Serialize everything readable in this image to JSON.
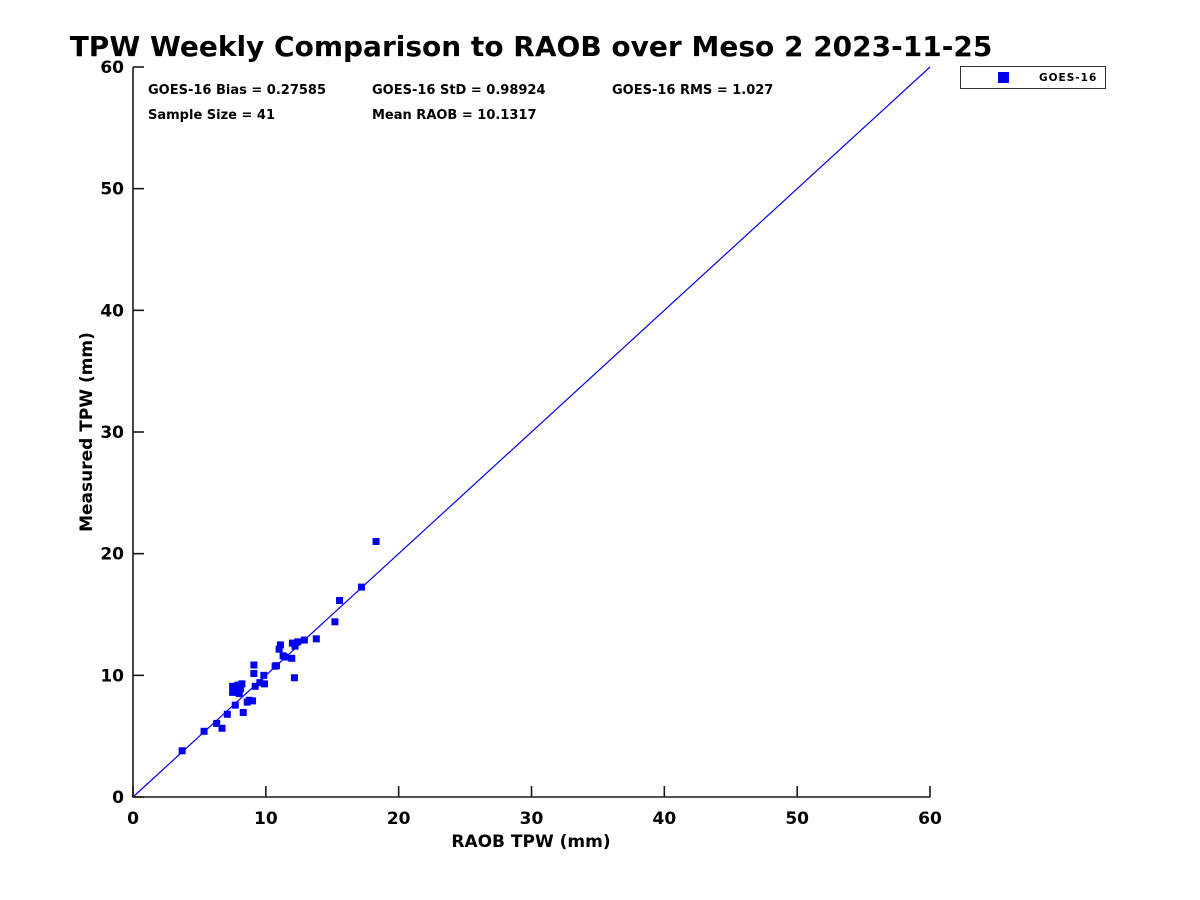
{
  "colors": {
    "series": "#0000EE",
    "axis": "#1a1a1a",
    "text": "#000000",
    "background": "#ffffff"
  },
  "legend": {
    "label": "GOES-16",
    "marker_shape": "square",
    "marker_color": "#0000EE"
  },
  "chart_data": {
    "type": "scatter",
    "title": "TPW Weekly Comparison to RAOB over Meso 2 2023-11-25",
    "xlabel": "RAOB TPW (mm)",
    "ylabel": "Measured TPW (mm)",
    "xlim": [
      0,
      60
    ],
    "ylim": [
      0,
      60
    ],
    "xticks": [
      0,
      10,
      20,
      30,
      40,
      50,
      60
    ],
    "yticks": [
      0,
      10,
      20,
      30,
      40,
      50,
      60
    ],
    "grid": false,
    "legend_position": "outside-top-right",
    "annotations": {
      "bias": "GOES-16 Bias = 0.27585",
      "std": "GOES-16 StD = 0.98924",
      "rms": "GOES-16 RMS = 1.027",
      "sample_size": "Sample Size = 41",
      "mean_raob": "Mean RAOB = 10.1317"
    },
    "reference_line": {
      "type": "identity",
      "x": [
        0,
        60
      ],
      "y": [
        0,
        60
      ],
      "color": "#0000EE"
    },
    "series": [
      {
        "name": "GOES-16",
        "marker": "filled-square",
        "color": "#0000EE",
        "marker_size_px": 7,
        "points": [
          [
            3.7,
            3.8
          ],
          [
            5.35,
            5.4
          ],
          [
            6.3,
            6.05
          ],
          [
            6.7,
            5.65
          ],
          [
            7.1,
            6.8
          ],
          [
            7.7,
            7.55
          ],
          [
            8.3,
            6.95
          ],
          [
            8.75,
            7.95
          ],
          [
            8.6,
            7.8
          ],
          [
            9.0,
            7.9
          ],
          [
            7.5,
            8.6
          ],
          [
            7.6,
            9.0
          ],
          [
            7.8,
            8.8
          ],
          [
            7.9,
            9.2
          ],
          [
            8.1,
            8.9
          ],
          [
            8.2,
            9.3
          ],
          [
            7.5,
            9.1
          ],
          [
            8.0,
            8.5
          ],
          [
            9.2,
            9.1
          ],
          [
            9.55,
            9.4
          ],
          [
            9.9,
            9.3
          ],
          [
            9.85,
            10.0
          ],
          [
            9.1,
            10.15
          ],
          [
            9.1,
            10.85
          ],
          [
            10.8,
            10.8
          ],
          [
            10.7,
            10.75
          ],
          [
            11.1,
            12.5
          ],
          [
            11.0,
            12.15
          ],
          [
            11.3,
            11.6
          ],
          [
            11.45,
            11.5
          ],
          [
            11.95,
            11.4
          ],
          [
            12.0,
            12.65
          ],
          [
            12.2,
            12.4
          ],
          [
            12.4,
            12.75
          ],
          [
            12.9,
            12.9
          ],
          [
            13.8,
            13.0
          ],
          [
            12.15,
            9.8
          ],
          [
            15.2,
            14.4
          ],
          [
            15.55,
            16.15
          ],
          [
            17.2,
            17.25
          ],
          [
            18.3,
            21.0
          ]
        ]
      }
    ]
  }
}
